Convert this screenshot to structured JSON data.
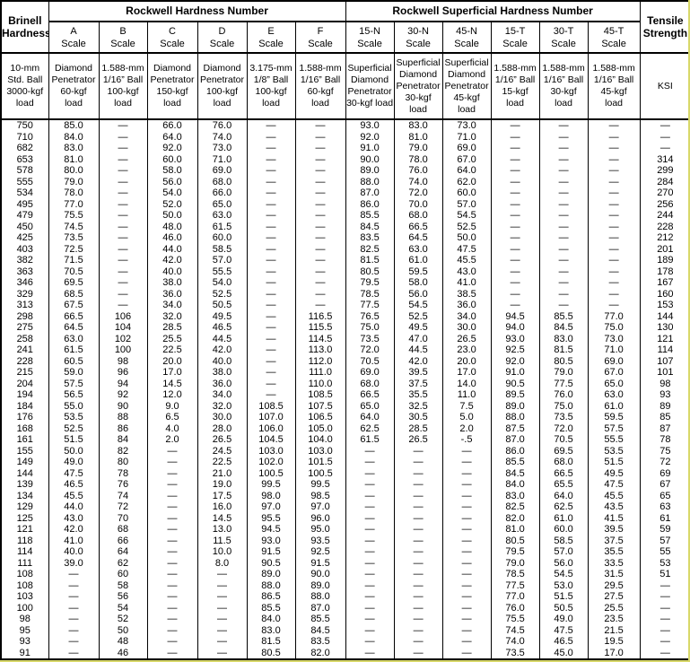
{
  "table": {
    "group1": "Rockwell Hardness Number",
    "group2": "Rockwell Superficial Hardness Number",
    "corner_header": "Brinell\nHardness",
    "corner_desc": "10-mm\nStd. Ball\n3000-kgf\nload",
    "tensile_header": "Tensile\nStrength",
    "tensile_desc": "KSI",
    "scales": [
      {
        "label": "A\nScale",
        "desc": "Diamond\nPenetrator\n60-kgf\nload"
      },
      {
        "label": "B\nScale",
        "desc": "1.588-mm\n1/16” Ball\n100-kgf\nload"
      },
      {
        "label": "C\nScale",
        "desc": "Diamond\nPenetrator\n150-kgf\nload"
      },
      {
        "label": "D\nScale",
        "desc": "Diamond\nPenetrator\n100-kgf\nload"
      },
      {
        "label": "E\nScale",
        "desc": "3.175-mm\n1/8” Ball\n100-kgf\nload"
      },
      {
        "label": "F\nScale",
        "desc": "1.588-mm\n1/16” Ball\n60-kgf\nload"
      },
      {
        "label": "15-N\nScale",
        "desc": "Superficial\nDiamond\nPenetrator\n30-kgf load"
      },
      {
        "label": "30-N\nScale",
        "desc": "Superficial\nDiamond\nPenetrator\n30-kgf\nload"
      },
      {
        "label": "45-N\nScale",
        "desc": "Superficial\nDiamond\nPenetrator\n45-kgf\nload"
      },
      {
        "label": "15-T\nScale",
        "desc": "1.588-mm\n1/16” Ball\n15-kgf\nload"
      },
      {
        "label": "30-T\nScale",
        "desc": "1.588-mm\n1/16” Ball\n30-kgf\nload"
      },
      {
        "label": "45-T\nScale",
        "desc": "1.588-mm\n1/16” Ball\n45-kgf\nload"
      }
    ],
    "rows": [
      [
        "750",
        "85.0",
        "—",
        "66.0",
        "76.0",
        "—",
        "—",
        "93.0",
        "83.0",
        "73.0",
        "—",
        "—",
        "—",
        "—"
      ],
      [
        "710",
        "84.0",
        "—",
        "64.0",
        "74.0",
        "—",
        "—",
        "92.0",
        "81.0",
        "71.0",
        "—",
        "—",
        "—",
        "—"
      ],
      [
        "682",
        "83.0",
        "—",
        "92.0",
        "73.0",
        "—",
        "—",
        "91.0",
        "79.0",
        "69.0",
        "—",
        "—",
        "—",
        "—"
      ],
      [
        "653",
        "81.0",
        "—",
        "60.0",
        "71.0",
        "—",
        "—",
        "90.0",
        "78.0",
        "67.0",
        "—",
        "—",
        "—",
        "314"
      ],
      [
        "578",
        "80.0",
        "—",
        "58.0",
        "69.0",
        "—",
        "—",
        "89.0",
        "76.0",
        "64.0",
        "—",
        "—",
        "—",
        "299"
      ],
      [
        "555",
        "79.0",
        "—",
        "56.0",
        "68.0",
        "—",
        "—",
        "88.0",
        "74.0",
        "62.0",
        "—",
        "—",
        "—",
        "284"
      ],
      [
        "534",
        "78.0",
        "—",
        "54.0",
        "66.0",
        "—",
        "—",
        "87.0",
        "72.0",
        "60.0",
        "—",
        "—",
        "—",
        "270"
      ],
      [
        "495",
        "77.0",
        "—",
        "52.0",
        "65.0",
        "—",
        "—",
        "86.0",
        "70.0",
        "57.0",
        "—",
        "—",
        "—",
        "256"
      ],
      [
        "479",
        "75.5",
        "—",
        "50.0",
        "63.0",
        "—",
        "—",
        "85.5",
        "68.0",
        "54.5",
        "—",
        "—",
        "—",
        "244"
      ],
      [
        "450",
        "74.5",
        "—",
        "48.0",
        "61.5",
        "—",
        "—",
        "84.5",
        "66.5",
        "52.5",
        "—",
        "—",
        "—",
        "228"
      ],
      [
        "425",
        "73.5",
        "—",
        "46.0",
        "60.0",
        "—",
        "—",
        "83.5",
        "64.5",
        "50.0",
        "—",
        "—",
        "—",
        "212"
      ],
      [
        "403",
        "72.5",
        "—",
        "44.0",
        "58.5",
        "—",
        "—",
        "82.5",
        "63.0",
        "47.5",
        "—",
        "—",
        "—",
        "201"
      ],
      [
        "382",
        "71.5",
        "—",
        "42.0",
        "57.0",
        "—",
        "—",
        "81.5",
        "61.0",
        "45.5",
        "—",
        "—",
        "—",
        "189"
      ],
      [
        "363",
        "70.5",
        "—",
        "40.0",
        "55.5",
        "—",
        "—",
        "80.5",
        "59.5",
        "43.0",
        "—",
        "—",
        "—",
        "178"
      ],
      [
        "346",
        "69.5",
        "—",
        "38.0",
        "54.0",
        "—",
        "—",
        "79.5",
        "58.0",
        "41.0",
        "—",
        "—",
        "—",
        "167"
      ],
      [
        "329",
        "68.5",
        "—",
        "36.0",
        "52.5",
        "—",
        "—",
        "78.5",
        "56.0",
        "38.5",
        "—",
        "—",
        "—",
        "160"
      ],
      [
        "313",
        "67.5",
        "—",
        "34.0",
        "50.5",
        "—",
        "—",
        "77.5",
        "54.5",
        "36.0",
        "—",
        "—",
        "—",
        "153"
      ],
      [
        "298",
        "66.5",
        "106",
        "32.0",
        "49.5",
        "—",
        "116.5",
        "76.5",
        "52.5",
        "34.0",
        "94.5",
        "85.5",
        "77.0",
        "144"
      ],
      [
        "275",
        "64.5",
        "104",
        "28.5",
        "46.5",
        "—",
        "115.5",
        "75.0",
        "49.5",
        "30.0",
        "94.0",
        "84.5",
        "75.0",
        "130"
      ],
      [
        "258",
        "63.0",
        "102",
        "25.5",
        "44.5",
        "—",
        "114.5",
        "73.5",
        "47.0",
        "26.5",
        "93.0",
        "83.0",
        "73.0",
        "121"
      ],
      [
        "241",
        "61.5",
        "100",
        "22.5",
        "42.0",
        "—",
        "113.0",
        "72.0",
        "44.5",
        "23.0",
        "92.5",
        "81.5",
        "71.0",
        "114"
      ],
      [
        "228",
        "60.5",
        "98",
        "20.0",
        "40.0",
        "—",
        "112.0",
        "70.5",
        "42.0",
        "20.0",
        "92.0",
        "80.5",
        "69.0",
        "107"
      ],
      [
        "215",
        "59.0",
        "96",
        "17.0",
        "38.0",
        "—",
        "111.0",
        "69.0",
        "39.5",
        "17.0",
        "91.0",
        "79.0",
        "67.0",
        "101"
      ],
      [
        "204",
        "57.5",
        "94",
        "14.5",
        "36.0",
        "—",
        "110.0",
        "68.0",
        "37.5",
        "14.0",
        "90.5",
        "77.5",
        "65.0",
        "98"
      ],
      [
        "194",
        "56.5",
        "92",
        "12.0",
        "34.0",
        "—",
        "108.5",
        "66.5",
        "35.5",
        "11.0",
        "89.5",
        "76.0",
        "63.0",
        "93"
      ],
      [
        "184",
        "55.0",
        "90",
        "9.0",
        "32.0",
        "108.5",
        "107.5",
        "65.0",
        "32.5",
        "7.5",
        "89.0",
        "75.0",
        "61.0",
        "89"
      ],
      [
        "176",
        "53.5",
        "88",
        "6.5",
        "30.0",
        "107.0",
        "106.5",
        "64.0",
        "30.5",
        "5.0",
        "88.0",
        "73.5",
        "59.5",
        "85"
      ],
      [
        "168",
        "52.5",
        "86",
        "4.0",
        "28.0",
        "106.0",
        "105.0",
        "62.5",
        "28.5",
        "2.0",
        "87.5",
        "72.0",
        "57.5",
        "87"
      ],
      [
        "161",
        "51.5",
        "84",
        "2.0",
        "26.5",
        "104.5",
        "104.0",
        "61.5",
        "26.5",
        "-.5",
        "87.0",
        "70.5",
        "55.5",
        "78"
      ],
      [
        "155",
        "50.0",
        "82",
        "—",
        "24.5",
        "103.0",
        "103.0",
        "—",
        "—",
        "—",
        "86.0",
        "69.5",
        "53.5",
        "75"
      ],
      [
        "149",
        "49.0",
        "80",
        "—",
        "22.5",
        "102.0",
        "101.5",
        "—",
        "—",
        "—",
        "85.5",
        "68.0",
        "51.5",
        "72"
      ],
      [
        "144",
        "47.5",
        "78",
        "—",
        "21.0",
        "100.5",
        "100.5",
        "—",
        "—",
        "—",
        "84.5",
        "66.5",
        "49.5",
        "69"
      ],
      [
        "139",
        "46.5",
        "76",
        "—",
        "19.0",
        "99.5",
        "99.5",
        "—",
        "—",
        "—",
        "84.0",
        "65.5",
        "47.5",
        "67"
      ],
      [
        "134",
        "45.5",
        "74",
        "—",
        "17.5",
        "98.0",
        "98.5",
        "—",
        "—",
        "—",
        "83.0",
        "64.0",
        "45.5",
        "65"
      ],
      [
        "129",
        "44.0",
        "72",
        "—",
        "16.0",
        "97.0",
        "97.0",
        "—",
        "—",
        "—",
        "82.5",
        "62.5",
        "43.5",
        "63"
      ],
      [
        "125",
        "43.0",
        "70",
        "—",
        "14.5",
        "95.5",
        "96.0",
        "—",
        "—",
        "—",
        "82.0",
        "61.0",
        "41.5",
        "61"
      ],
      [
        "121",
        "42.0",
        "68",
        "—",
        "13.0",
        "94.5",
        "95.0",
        "—",
        "—",
        "—",
        "81.0",
        "60.0",
        "39.5",
        "59"
      ],
      [
        "118",
        "41.0",
        "66",
        "—",
        "11.5",
        "93.0",
        "93.5",
        "—",
        "—",
        "—",
        "80.5",
        "58.5",
        "37.5",
        "57"
      ],
      [
        "114",
        "40.0",
        "64",
        "—",
        "10.0",
        "91.5",
        "92.5",
        "—",
        "—",
        "—",
        "79.5",
        "57.0",
        "35.5",
        "55"
      ],
      [
        "111",
        "39.0",
        "62",
        "—",
        "8.0",
        "90.5",
        "91.5",
        "—",
        "—",
        "—",
        "79.0",
        "56.0",
        "33.5",
        "53"
      ],
      [
        "108",
        "—",
        "60",
        "—",
        "—",
        "89.0",
        "90.0",
        "—",
        "—",
        "—",
        "78.5",
        "54.5",
        "31.5",
        "51"
      ],
      [
        "108",
        "—",
        "58",
        "—",
        "—",
        "88.0",
        "89.0",
        "—",
        "—",
        "—",
        "77.5",
        "53.0",
        "29.5",
        "—"
      ],
      [
        "103",
        "—",
        "56",
        "—",
        "—",
        "86.5",
        "88.0",
        "—",
        "—",
        "—",
        "77.0",
        "51.5",
        "27.5",
        "—"
      ],
      [
        "100",
        "—",
        "54",
        "—",
        "—",
        "85.5",
        "87.0",
        "—",
        "—",
        "—",
        "76.0",
        "50.5",
        "25.5",
        "—"
      ],
      [
        "98",
        "—",
        "52",
        "—",
        "—",
        "84.0",
        "85.5",
        "—",
        "—",
        "—",
        "75.5",
        "49.0",
        "23.5",
        "—"
      ],
      [
        "95",
        "—",
        "50",
        "—",
        "—",
        "83.0",
        "84.5",
        "—",
        "—",
        "—",
        "74.5",
        "47.5",
        "21.5",
        "—"
      ],
      [
        "93",
        "—",
        "48",
        "—",
        "—",
        "81.5",
        "83.5",
        "—",
        "—",
        "—",
        "74.0",
        "46.5",
        "19.5",
        "—"
      ],
      [
        "91",
        "—",
        "46",
        "—",
        "—",
        "80.5",
        "82.0",
        "—",
        "—",
        "—",
        "73.5",
        "45.0",
        "17.0",
        "—"
      ]
    ]
  }
}
